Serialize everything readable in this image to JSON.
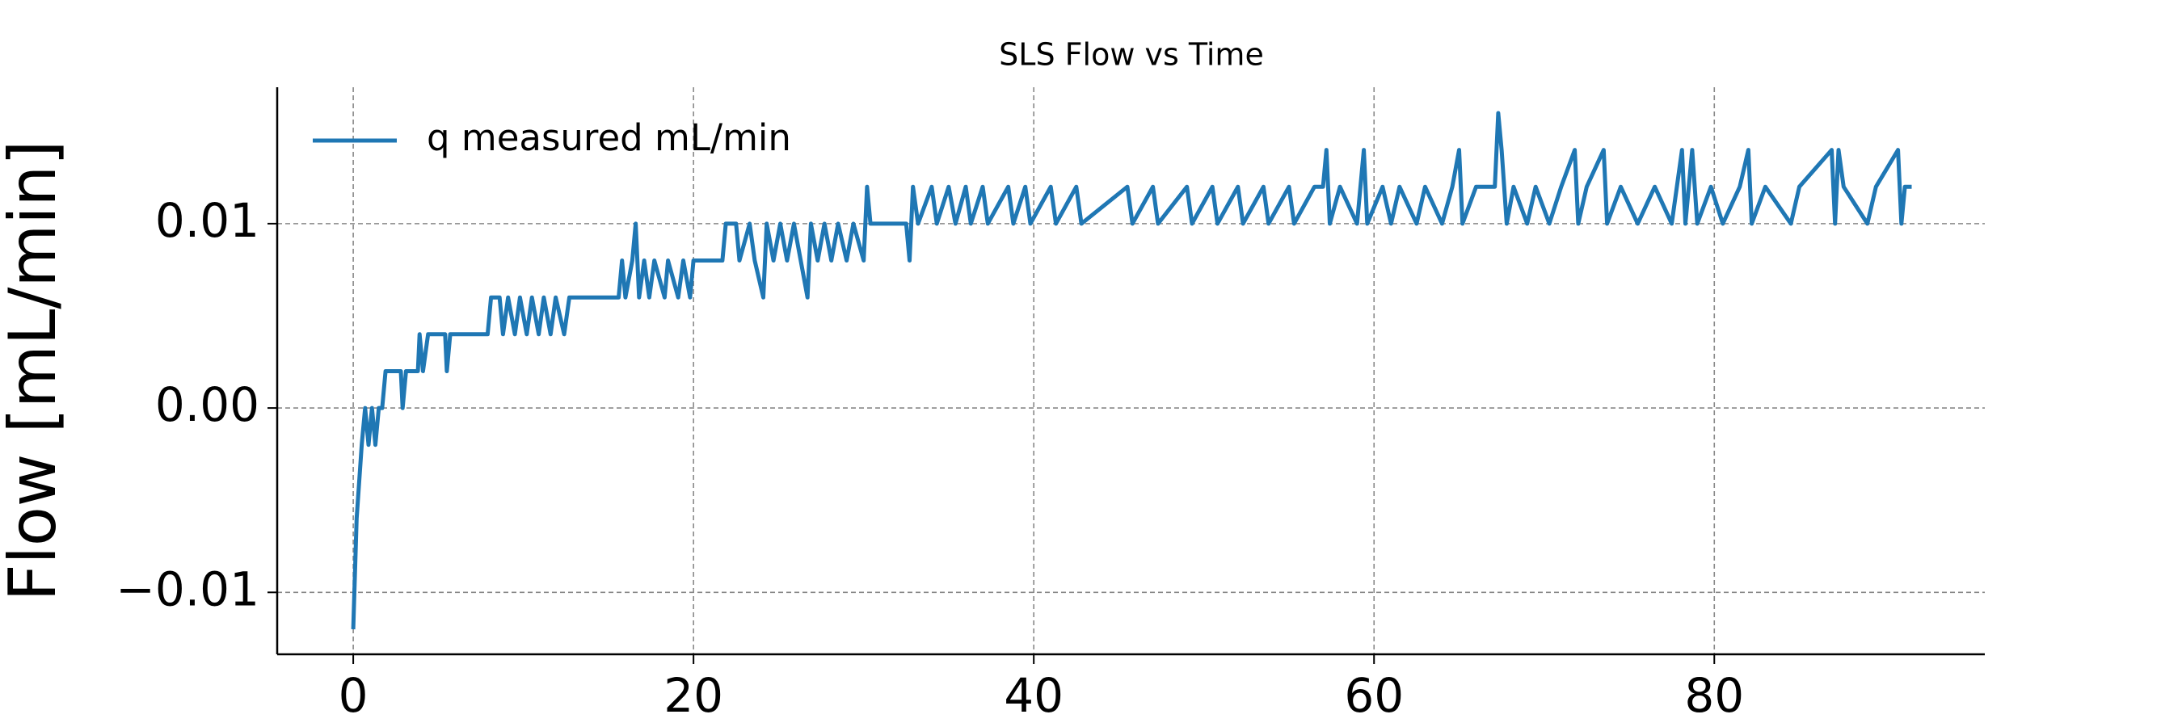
{
  "chart_data": {
    "type": "line",
    "title": "SLS Flow vs Time",
    "ylabel": "Flow [mL/min]",
    "x": [
      0,
      0.2,
      0.5,
      0.7,
      0.9,
      1.1,
      1.3,
      1.5,
      1.7,
      1.9,
      2.8,
      2.9,
      3.1,
      3.8,
      3.9,
      4.1,
      4.4,
      5.4,
      5.5,
      5.7,
      7.9,
      8.1,
      8.6,
      8.8,
      9.1,
      9.5,
      9.8,
      10.2,
      10.5,
      10.9,
      11.2,
      11.6,
      11.9,
      12.4,
      12.7,
      15.6,
      15.8,
      16.0,
      16.4,
      16.6,
      16.8,
      17.1,
      17.4,
      17.7,
      18.3,
      18.5,
      19.1,
      19.4,
      19.8,
      20.0,
      21.7,
      21.9,
      22.5,
      22.7,
      23.3,
      23.6,
      24.1,
      24.3,
      24.7,
      25.1,
      25.5,
      25.9,
      26.3,
      26.7,
      26.9,
      27.3,
      27.7,
      28.1,
      28.5,
      29.0,
      29.4,
      30.0,
      30.2,
      30.4,
      32.5,
      32.7,
      32.9,
      33.2,
      34.0,
      34.3,
      35.0,
      35.4,
      36.0,
      36.3,
      37.0,
      37.3,
      38.5,
      38.8,
      39.5,
      39.8,
      41.0,
      41.3,
      42.5,
      42.8,
      45.5,
      45.8,
      47.0,
      47.3,
      49.0,
      49.3,
      50.5,
      50.8,
      52.0,
      52.3,
      53.5,
      53.8,
      55.0,
      55.3,
      56.5,
      57.0,
      57.2,
      57.4,
      58.0,
      59.0,
      59.4,
      59.6,
      60.5,
      61.0,
      61.5,
      62.5,
      63.0,
      64.0,
      64.6,
      65.0,
      65.2,
      66.0,
      67.1,
      67.3,
      67.5,
      67.8,
      68.2,
      69.0,
      69.5,
      70.3,
      71.0,
      71.8,
      72.0,
      72.5,
      73.5,
      73.7,
      74.5,
      75.5,
      76.5,
      77.5,
      78.1,
      78.3,
      78.7,
      79.0,
      79.8,
      80.5,
      81.5,
      82.0,
      82.2,
      83.0,
      84.5,
      85.0,
      86.9,
      87.1,
      87.3,
      87.6,
      89.0,
      89.5,
      90.8,
      91.0,
      91.2,
      91.6
    ],
    "series": [
      {
        "name": "q measured mL/min",
        "color": "#1f77b4",
        "values": [
          -0.012,
          -0.006,
          -0.002,
          0.0,
          -0.002,
          0.0,
          -0.002,
          0.0,
          0.0,
          0.002,
          0.002,
          0.0,
          0.002,
          0.002,
          0.004,
          0.002,
          0.004,
          0.004,
          0.002,
          0.004,
          0.004,
          0.006,
          0.006,
          0.004,
          0.006,
          0.004,
          0.006,
          0.004,
          0.006,
          0.004,
          0.006,
          0.004,
          0.006,
          0.004,
          0.006,
          0.006,
          0.008,
          0.006,
          0.008,
          0.01,
          0.006,
          0.008,
          0.006,
          0.008,
          0.006,
          0.008,
          0.006,
          0.008,
          0.006,
          0.008,
          0.008,
          0.01,
          0.01,
          0.008,
          0.01,
          0.008,
          0.006,
          0.01,
          0.008,
          0.01,
          0.008,
          0.01,
          0.008,
          0.006,
          0.01,
          0.008,
          0.01,
          0.008,
          0.01,
          0.008,
          0.01,
          0.008,
          0.012,
          0.01,
          0.01,
          0.008,
          0.012,
          0.01,
          0.012,
          0.01,
          0.012,
          0.01,
          0.012,
          0.01,
          0.012,
          0.01,
          0.012,
          0.01,
          0.012,
          0.01,
          0.012,
          0.01,
          0.012,
          0.01,
          0.012,
          0.01,
          0.012,
          0.01,
          0.012,
          0.01,
          0.012,
          0.01,
          0.012,
          0.01,
          0.012,
          0.01,
          0.012,
          0.01,
          0.012,
          0.012,
          0.014,
          0.01,
          0.012,
          0.01,
          0.014,
          0.01,
          0.012,
          0.01,
          0.012,
          0.01,
          0.012,
          0.01,
          0.012,
          0.014,
          0.01,
          0.012,
          0.012,
          0.016,
          0.014,
          0.01,
          0.012,
          0.01,
          0.012,
          0.01,
          0.012,
          0.014,
          0.01,
          0.012,
          0.014,
          0.01,
          0.012,
          0.01,
          0.012,
          0.01,
          0.014,
          0.01,
          0.014,
          0.01,
          0.012,
          0.01,
          0.012,
          0.014,
          0.01,
          0.012,
          0.01,
          0.012,
          0.014,
          0.01,
          0.014,
          0.012,
          0.01,
          0.012,
          0.014,
          0.01,
          0.012,
          0.012
        ]
      }
    ],
    "xlim": [
      -4.47,
      95.9
    ],
    "xticks": [
      0,
      20,
      40,
      60,
      80
    ],
    "ylim": [
      -0.01336,
      0.0174
    ],
    "yticks": [
      {
        "value": -0.01,
        "label": "−0.01"
      },
      {
        "value": 0,
        "label": "0.00"
      },
      0.01
    ],
    "grid": true,
    "legend": "upper left"
  }
}
